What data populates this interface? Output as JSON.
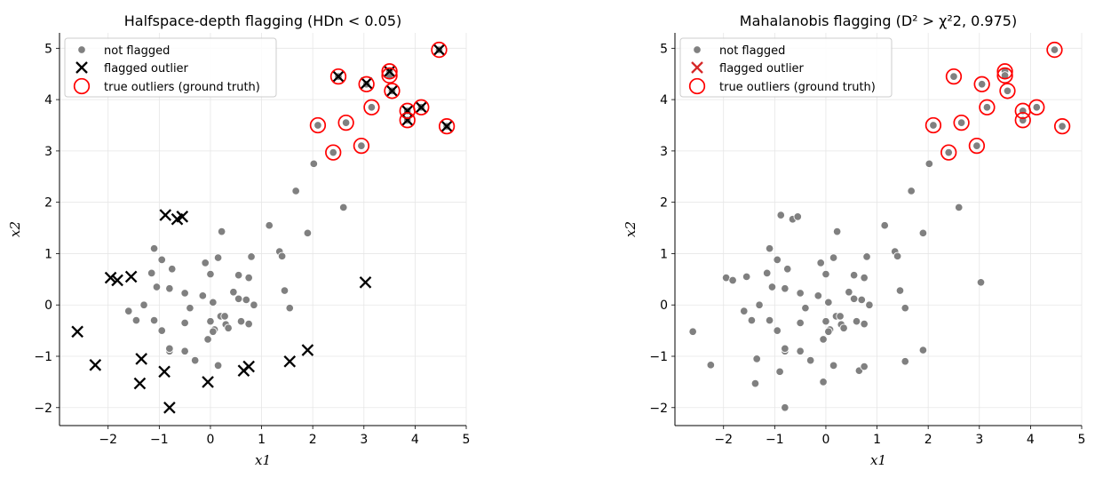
{
  "colors": {
    "inlier": "#808080",
    "flag_left": "#000000",
    "flag_right": "#d62728",
    "truth": "#ff0000"
  },
  "chart_data": [
    {
      "type": "scatter",
      "title": "Halfspace-depth flagging  (HDn < 0.05)",
      "xlabel": "x1",
      "ylabel": "x2",
      "xlim": [
        -2.95,
        5.0
      ],
      "ylim": [
        -2.35,
        5.3
      ],
      "xticks": [
        "−2",
        "−1",
        "0",
        "1",
        "2",
        "3",
        "4",
        "5"
      ],
      "yticks": [
        "−2",
        "−1",
        "0",
        "1",
        "2",
        "3",
        "4",
        "5"
      ],
      "grid": true,
      "legend_position": "top-left",
      "legend": [
        "not flagged",
        "flagged outlier",
        "true outliers (ground truth)"
      ],
      "series": [
        {
          "name": "not flagged",
          "marker": "dot",
          "points": [
            [
              -1.1,
              1.1
            ],
            [
              -0.95,
              0.88
            ],
            [
              -0.75,
              0.7
            ],
            [
              -1.15,
              0.62
            ],
            [
              -0.1,
              0.82
            ],
            [
              0.15,
              0.92
            ],
            [
              0.22,
              1.43
            ],
            [
              0.8,
              0.94
            ],
            [
              0.55,
              0.58
            ],
            [
              0.75,
              0.53
            ],
            [
              -1.05,
              0.35
            ],
            [
              -0.8,
              0.32
            ],
            [
              -0.5,
              0.23
            ],
            [
              -0.15,
              0.18
            ],
            [
              0.0,
              0.6
            ],
            [
              0.45,
              0.25
            ],
            [
              0.7,
              0.1
            ],
            [
              0.85,
              0.0
            ],
            [
              0.55,
              0.12
            ],
            [
              -1.6,
              -0.12
            ],
            [
              -1.45,
              -0.3
            ],
            [
              -1.3,
              0.0
            ],
            [
              -1.1,
              -0.3
            ],
            [
              -0.95,
              -0.5
            ],
            [
              -0.5,
              -0.35
            ],
            [
              -0.4,
              -0.06
            ],
            [
              0.0,
              -0.32
            ],
            [
              0.05,
              0.05
            ],
            [
              0.2,
              -0.22
            ],
            [
              0.28,
              -0.22
            ],
            [
              0.3,
              -0.38
            ],
            [
              0.35,
              -0.45
            ],
            [
              0.6,
              -0.32
            ],
            [
              0.75,
              -0.37
            ],
            [
              0.08,
              -0.48
            ],
            [
              0.05,
              -0.52
            ],
            [
              -0.05,
              -0.67
            ],
            [
              -0.5,
              -0.9
            ],
            [
              -0.8,
              -0.9
            ],
            [
              -0.8,
              -0.85
            ],
            [
              -0.3,
              -1.08
            ],
            [
              0.15,
              -1.18
            ],
            [
              1.35,
              1.04
            ],
            [
              1.4,
              0.95
            ],
            [
              1.45,
              0.28
            ],
            [
              1.55,
              -0.06
            ],
            [
              1.15,
              1.55
            ],
            [
              1.67,
              2.22
            ],
            [
              1.9,
              1.4
            ],
            [
              2.6,
              1.9
            ],
            [
              2.02,
              2.75
            ],
            [
              2.1,
              3.5
            ],
            [
              2.4,
              2.97
            ],
            [
              2.5,
              4.45
            ],
            [
              2.65,
              3.55
            ],
            [
              2.95,
              3.1
            ],
            [
              3.05,
              4.3
            ],
            [
              3.15,
              3.85
            ],
            [
              3.5,
              4.55
            ],
            [
              3.5,
              4.47
            ],
            [
              3.55,
              4.17
            ],
            [
              3.85,
              3.78
            ],
            [
              3.85,
              3.6
            ],
            [
              4.12,
              3.85
            ],
            [
              4.47,
              4.97
            ],
            [
              4.62,
              3.48
            ]
          ]
        },
        {
          "name": "flagged outlier",
          "marker": "x",
          "points": [
            [
              -2.6,
              -0.52
            ],
            [
              -2.25,
              -1.17
            ],
            [
              -1.95,
              0.53
            ],
            [
              -1.82,
              0.48
            ],
            [
              -1.55,
              0.55
            ],
            [
              -1.35,
              -1.05
            ],
            [
              -1.38,
              -1.53
            ],
            [
              -0.9,
              -1.3
            ],
            [
              -0.8,
              -2.0
            ],
            [
              -0.88,
              1.75
            ],
            [
              -0.65,
              1.67
            ],
            [
              -0.55,
              1.72
            ],
            [
              -0.05,
              -1.5
            ],
            [
              0.65,
              -1.28
            ],
            [
              0.75,
              -1.2
            ],
            [
              1.55,
              -1.1
            ],
            [
              1.9,
              -0.88
            ],
            [
              3.03,
              0.44
            ],
            [
              2.5,
              4.45
            ],
            [
              3.05,
              4.32
            ],
            [
              3.5,
              4.55
            ],
            [
              3.55,
              4.17
            ],
            [
              3.85,
              3.78
            ],
            [
              3.85,
              3.6
            ],
            [
              4.12,
              3.85
            ],
            [
              4.47,
              4.97
            ],
            [
              4.62,
              3.48
            ]
          ]
        },
        {
          "name": "true outliers (ground truth)",
          "marker": "circle",
          "points": [
            [
              2.1,
              3.5
            ],
            [
              2.4,
              2.97
            ],
            [
              2.5,
              4.45
            ],
            [
              2.65,
              3.55
            ],
            [
              2.95,
              3.1
            ],
            [
              3.05,
              4.3
            ],
            [
              3.15,
              3.85
            ],
            [
              3.5,
              4.55
            ],
            [
              3.5,
              4.47
            ],
            [
              3.55,
              4.17
            ],
            [
              3.85,
              3.78
            ],
            [
              3.85,
              3.6
            ],
            [
              4.12,
              3.85
            ],
            [
              4.47,
              4.97
            ],
            [
              4.62,
              3.48
            ]
          ]
        }
      ]
    },
    {
      "type": "scatter",
      "title": "Mahalanobis flagging  (D² > χ²2, 0.975)",
      "xlabel": "x1",
      "ylabel": "x2",
      "xlim": [
        -2.95,
        5.0
      ],
      "ylim": [
        -2.35,
        5.3
      ],
      "xticks": [
        "−2",
        "−1",
        "0",
        "1",
        "2",
        "3",
        "4",
        "5"
      ],
      "yticks": [
        "−2",
        "−1",
        "0",
        "1",
        "2",
        "3",
        "4",
        "5"
      ],
      "grid": true,
      "legend_position": "top-left",
      "legend": [
        "not flagged",
        "flagged outlier",
        "true outliers (ground truth)"
      ],
      "series": [
        {
          "name": "not flagged",
          "marker": "dot",
          "points": [
            [
              -2.6,
              -0.52
            ],
            [
              -2.25,
              -1.17
            ],
            [
              -1.95,
              0.53
            ],
            [
              -1.82,
              0.48
            ],
            [
              -1.55,
              0.55
            ],
            [
              -1.35,
              -1.05
            ],
            [
              -1.38,
              -1.53
            ],
            [
              -0.9,
              -1.3
            ],
            [
              -0.8,
              -2.0
            ],
            [
              -0.88,
              1.75
            ],
            [
              -0.65,
              1.67
            ],
            [
              -0.55,
              1.72
            ],
            [
              -0.05,
              -1.5
            ],
            [
              0.65,
              -1.28
            ],
            [
              0.75,
              -1.2
            ],
            [
              1.55,
              -1.1
            ],
            [
              1.9,
              -0.88
            ],
            [
              3.03,
              0.44
            ],
            [
              -1.1,
              1.1
            ],
            [
              -0.95,
              0.88
            ],
            [
              -0.75,
              0.7
            ],
            [
              -1.15,
              0.62
            ],
            [
              -0.1,
              0.82
            ],
            [
              0.15,
              0.92
            ],
            [
              0.22,
              1.43
            ],
            [
              0.8,
              0.94
            ],
            [
              0.55,
              0.58
            ],
            [
              0.75,
              0.53
            ],
            [
              -1.05,
              0.35
            ],
            [
              -0.8,
              0.32
            ],
            [
              -0.5,
              0.23
            ],
            [
              -0.15,
              0.18
            ],
            [
              0.0,
              0.6
            ],
            [
              0.45,
              0.25
            ],
            [
              0.7,
              0.1
            ],
            [
              0.85,
              0.0
            ],
            [
              0.55,
              0.12
            ],
            [
              -1.6,
              -0.12
            ],
            [
              -1.45,
              -0.3
            ],
            [
              -1.3,
              0.0
            ],
            [
              -1.1,
              -0.3
            ],
            [
              -0.95,
              -0.5
            ],
            [
              -0.5,
              -0.35
            ],
            [
              -0.4,
              -0.06
            ],
            [
              0.0,
              -0.32
            ],
            [
              0.05,
              0.05
            ],
            [
              0.2,
              -0.22
            ],
            [
              0.28,
              -0.22
            ],
            [
              0.3,
              -0.38
            ],
            [
              0.35,
              -0.45
            ],
            [
              0.6,
              -0.32
            ],
            [
              0.75,
              -0.37
            ],
            [
              0.08,
              -0.48
            ],
            [
              0.05,
              -0.52
            ],
            [
              -0.05,
              -0.67
            ],
            [
              -0.5,
              -0.9
            ],
            [
              -0.8,
              -0.9
            ],
            [
              -0.8,
              -0.85
            ],
            [
              -0.3,
              -1.08
            ],
            [
              0.15,
              -1.18
            ],
            [
              1.35,
              1.04
            ],
            [
              1.4,
              0.95
            ],
            [
              1.45,
              0.28
            ],
            [
              1.55,
              -0.06
            ],
            [
              1.15,
              1.55
            ],
            [
              1.67,
              2.22
            ],
            [
              1.9,
              1.4
            ],
            [
              2.6,
              1.9
            ],
            [
              2.02,
              2.75
            ],
            [
              2.1,
              3.5
            ],
            [
              2.4,
              2.97
            ],
            [
              2.5,
              4.45
            ],
            [
              2.65,
              3.55
            ],
            [
              2.95,
              3.1
            ],
            [
              3.05,
              4.3
            ],
            [
              3.15,
              3.85
            ],
            [
              3.5,
              4.55
            ],
            [
              3.5,
              4.47
            ],
            [
              3.55,
              4.17
            ],
            [
              3.85,
              3.78
            ],
            [
              3.85,
              3.6
            ],
            [
              4.12,
              3.85
            ],
            [
              4.47,
              4.97
            ],
            [
              4.62,
              3.48
            ]
          ]
        },
        {
          "name": "flagged outlier",
          "marker": "x",
          "points": []
        },
        {
          "name": "true outliers (ground truth)",
          "marker": "circle",
          "points": [
            [
              2.1,
              3.5
            ],
            [
              2.4,
              2.97
            ],
            [
              2.5,
              4.45
            ],
            [
              2.65,
              3.55
            ],
            [
              2.95,
              3.1
            ],
            [
              3.05,
              4.3
            ],
            [
              3.15,
              3.85
            ],
            [
              3.5,
              4.55
            ],
            [
              3.5,
              4.47
            ],
            [
              3.55,
              4.17
            ],
            [
              3.85,
              3.78
            ],
            [
              3.85,
              3.6
            ],
            [
              4.12,
              3.85
            ],
            [
              4.47,
              4.97
            ],
            [
              4.62,
              3.48
            ]
          ]
        }
      ]
    }
  ]
}
